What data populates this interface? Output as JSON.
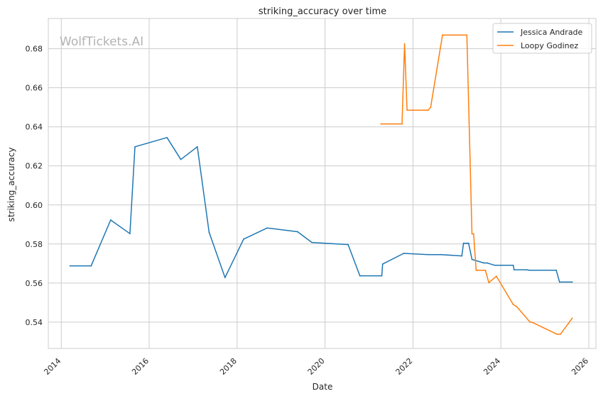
{
  "chart_data": {
    "type": "line",
    "title": "striking_accuracy over time",
    "xlabel": "Date",
    "ylabel": "striking_accuracy",
    "watermark": "WolfTickets.AI",
    "x_ticks": [
      "2014",
      "2016",
      "2018",
      "2020",
      "2022",
      "2024",
      "2026"
    ],
    "y_ticks": [
      "0.54",
      "0.56",
      "0.58",
      "0.60",
      "0.62",
      "0.64",
      "0.66",
      "0.68"
    ],
    "xlim": [
      "2013-09-15",
      "2026-03-01"
    ],
    "ylim": [
      0.5265,
      0.6955
    ],
    "grid": true,
    "legend_position": "top-right",
    "series": [
      {
        "name": "Jessica Andrade",
        "color": "#1f77b4",
        "points": [
          [
            "2014-03-15",
            0.5688
          ],
          [
            "2014-09-06",
            0.5688
          ],
          [
            "2015-02-15",
            0.5923
          ],
          [
            "2015-07-25",
            0.5853
          ],
          [
            "2015-09-05",
            0.6298
          ],
          [
            "2016-05-28",
            0.6345
          ],
          [
            "2016-09-20",
            0.6233
          ],
          [
            "2017-02-04",
            0.6298
          ],
          [
            "2017-05-13",
            0.586
          ],
          [
            "2017-09-22",
            0.5628
          ],
          [
            "2018-02-24",
            0.5825
          ],
          [
            "2018-09-08",
            0.5882
          ],
          [
            "2019-05-18",
            0.5863
          ],
          [
            "2019-09-14",
            0.5808
          ],
          [
            "2020-07-11",
            0.5797
          ],
          [
            "2020-10-17",
            0.5637
          ],
          [
            "2021-04-17",
            0.5637
          ],
          [
            "2021-04-24",
            0.5697
          ],
          [
            "2021-10-16",
            0.5752
          ],
          [
            "2022-05-07",
            0.5746
          ],
          [
            "2022-08-20",
            0.5746
          ],
          [
            "2023-02-11",
            0.5739
          ],
          [
            "2023-02-25",
            0.5804
          ],
          [
            "2023-04-08",
            0.5804
          ],
          [
            "2023-05-06",
            0.5721
          ],
          [
            "2023-08-12",
            0.5703
          ],
          [
            "2023-09-09",
            0.5703
          ],
          [
            "2023-11-11",
            0.5691
          ],
          [
            "2024-04-13",
            0.5691
          ],
          [
            "2024-04-20",
            0.5668
          ],
          [
            "2024-08-03",
            0.5668
          ],
          [
            "2024-08-24",
            0.5666
          ],
          [
            "2025-04-05",
            0.5666
          ],
          [
            "2025-05-03",
            0.5605
          ],
          [
            "2025-08-16",
            0.5605
          ]
        ]
      },
      {
        "name": "Loopy Godinez",
        "color": "#ff7f0e",
        "points": [
          [
            "2021-04-10",
            0.6415
          ],
          [
            "2021-10-02",
            0.6415
          ],
          [
            "2021-10-23",
            0.6825
          ],
          [
            "2021-11-13",
            0.6485
          ],
          [
            "2022-05-07",
            0.6485
          ],
          [
            "2022-05-28",
            0.65
          ],
          [
            "2022-09-03",
            0.687
          ],
          [
            "2023-03-25",
            0.687
          ],
          [
            "2023-05-06",
            0.5852
          ],
          [
            "2023-05-20",
            0.5852
          ],
          [
            "2023-06-10",
            0.5665
          ],
          [
            "2023-08-26",
            0.5665
          ],
          [
            "2023-09-23",
            0.5602
          ],
          [
            "2023-11-25",
            0.5635
          ],
          [
            "2024-04-13",
            0.549
          ],
          [
            "2024-05-11",
            0.548
          ],
          [
            "2024-08-31",
            0.54
          ],
          [
            "2024-09-14",
            0.54
          ],
          [
            "2025-04-12",
            0.5338
          ],
          [
            "2025-05-10",
            0.5338
          ],
          [
            "2025-08-16",
            0.542
          ]
        ]
      }
    ]
  }
}
